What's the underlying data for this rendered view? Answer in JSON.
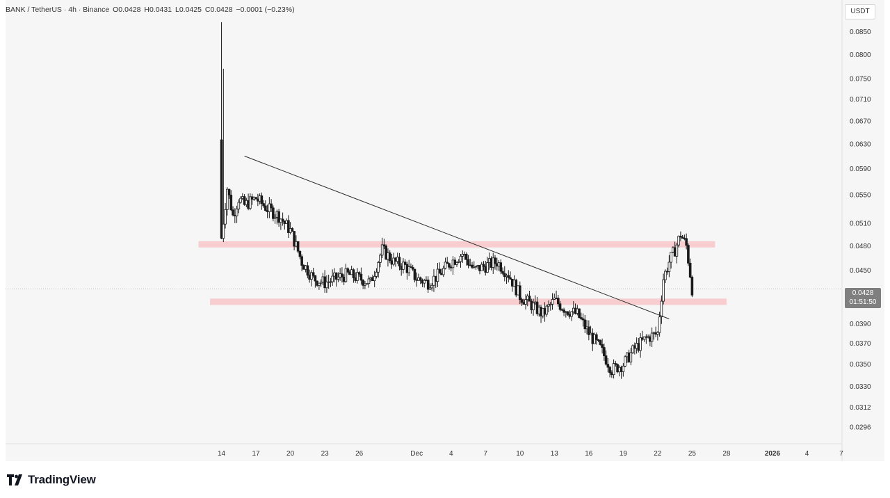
{
  "header": {
    "symbol": "BANK / TetherUS · 4h · Binance",
    "open": "O0.0428",
    "high": "H0.0431",
    "low": "L0.0425",
    "close": "C0.0428",
    "change": "−0.0001 (−0.23%)"
  },
  "price_axis": {
    "unit": "USDT",
    "current_price": "0.0428",
    "countdown": "01:51:50"
  },
  "brand": {
    "name": "TradingView"
  },
  "colors": {
    "candle": "#1a1a1a",
    "zone": "#f7c6c8",
    "trendline": "#2a2a2a",
    "price_tag": "#7f7f7f"
  },
  "chart_data": {
    "type": "candlestick",
    "title": "BANK / TetherUS · 4h · Binance",
    "ylim": [
      0.029,
      0.0875
    ],
    "y_scale": "log",
    "y_ticks": [
      "0.0850",
      "0.0800",
      "0.0750",
      "0.0710",
      "0.0670",
      "0.0630",
      "0.0590",
      "0.0550",
      "0.0510",
      "0.0480",
      "0.0450",
      "0.0390",
      "0.0370",
      "0.0350",
      "0.0330",
      "0.0312",
      "0.0296"
    ],
    "x_ticks": [
      {
        "date": "2025-11-14",
        "label": "14"
      },
      {
        "date": "2025-11-17",
        "label": "17"
      },
      {
        "date": "2025-11-20",
        "label": "20"
      },
      {
        "date": "2025-11-23",
        "label": "23"
      },
      {
        "date": "2025-11-26",
        "label": "26"
      },
      {
        "date": "2025-12-01",
        "label": "Dec"
      },
      {
        "date": "2025-12-04",
        "label": "4"
      },
      {
        "date": "2025-12-07",
        "label": "7"
      },
      {
        "date": "2025-12-10",
        "label": "10"
      },
      {
        "date": "2025-12-13",
        "label": "13"
      },
      {
        "date": "2025-12-16",
        "label": "16"
      },
      {
        "date": "2025-12-19",
        "label": "19"
      },
      {
        "date": "2025-12-22",
        "label": "22"
      },
      {
        "date": "2025-12-25",
        "label": "25"
      },
      {
        "date": "2025-12-28",
        "label": "28"
      },
      {
        "date": "2026-01-01",
        "label": "2026"
      },
      {
        "date": "2026-01-04",
        "label": "4"
      },
      {
        "date": "2026-01-07",
        "label": "7"
      }
    ],
    "x_range": [
      "2025-11-05",
      "2026-01-07"
    ],
    "last_price": 0.0428,
    "zones": [
      {
        "x_start": "2025-11-12",
        "x_end": "2025-12-27",
        "y_low": 0.0478,
        "y_high": 0.0486
      },
      {
        "x_start": "2025-11-13",
        "x_end": "2025-12-28",
        "y_low": 0.041,
        "y_high": 0.0417
      }
    ],
    "trendline": {
      "x1": "2025-11-16",
      "y1": 0.061,
      "x2": "2025-12-23",
      "y2": 0.0395
    },
    "price_path": [
      [
        "2025-11-14",
        0.049
      ],
      [
        "2025-11-14",
        0.056
      ],
      [
        "2025-11-15",
        0.052
      ],
      [
        "2025-11-15",
        0.0545
      ],
      [
        "2025-11-16",
        0.0535
      ],
      [
        "2025-11-17",
        0.0545
      ],
      [
        "2025-11-18",
        0.053
      ],
      [
        "2025-11-19",
        0.052
      ],
      [
        "2025-11-20",
        0.05
      ],
      [
        "2025-11-21",
        0.046
      ],
      [
        "2025-11-22",
        0.044
      ],
      [
        "2025-11-23",
        0.0435
      ],
      [
        "2025-11-24",
        0.044
      ],
      [
        "2025-11-25",
        0.0445
      ],
      [
        "2025-11-26",
        0.044
      ],
      [
        "2025-11-27",
        0.0435
      ],
      [
        "2025-11-28",
        0.0475
      ],
      [
        "2025-11-29",
        0.046
      ],
      [
        "2025-11-30",
        0.0455
      ],
      [
        "2025-12-01",
        0.044
      ],
      [
        "2025-12-02",
        0.0435
      ],
      [
        "2025-12-03",
        0.0445
      ],
      [
        "2025-12-04",
        0.046
      ],
      [
        "2025-12-05",
        0.047
      ],
      [
        "2025-12-06",
        0.045
      ],
      [
        "2025-12-07",
        0.0455
      ],
      [
        "2025-12-08",
        0.046
      ],
      [
        "2025-12-09",
        0.0445
      ],
      [
        "2025-12-10",
        0.042
      ],
      [
        "2025-12-11",
        0.041
      ],
      [
        "2025-12-12",
        0.04
      ],
      [
        "2025-12-13",
        0.0415
      ],
      [
        "2025-12-14",
        0.0405
      ],
      [
        "2025-12-15",
        0.04
      ],
      [
        "2025-12-16",
        0.038
      ],
      [
        "2025-12-17",
        0.0365
      ],
      [
        "2025-12-18",
        0.0345
      ],
      [
        "2025-12-19",
        0.035
      ],
      [
        "2025-12-20",
        0.0365
      ],
      [
        "2025-12-21",
        0.0375
      ],
      [
        "2025-12-22",
        0.038
      ],
      [
        "2025-12-22",
        0.044
      ],
      [
        "2025-12-23",
        0.046
      ],
      [
        "2025-12-23",
        0.0475
      ],
      [
        "2025-12-24",
        0.0495
      ],
      [
        "2025-12-24",
        0.048
      ],
      [
        "2025-12-25",
        0.0428
      ]
    ]
  }
}
